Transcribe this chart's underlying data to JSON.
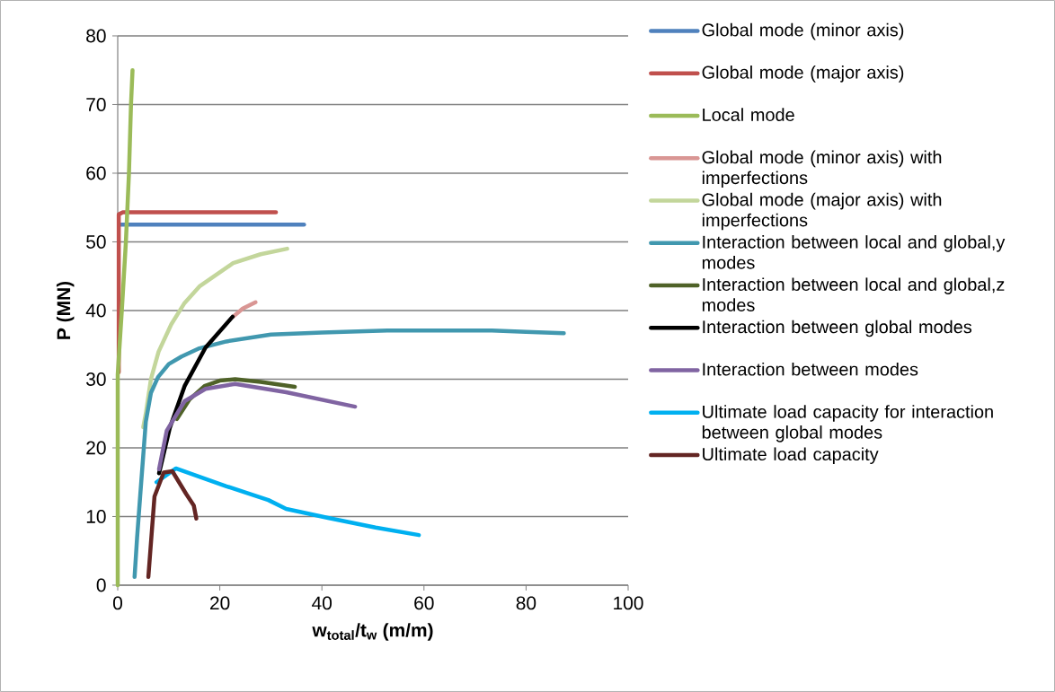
{
  "chart_data": {
    "type": "line",
    "xlabel": "w$_{total}$/t$_{w}$ (m/m)",
    "ylabel": "P (MN)",
    "xlim": [
      0,
      100
    ],
    "ylim": [
      0,
      80
    ],
    "xticks": [
      0,
      20,
      40,
      60,
      80,
      100
    ],
    "yticks": [
      0,
      10,
      20,
      30,
      40,
      50,
      60,
      70,
      80
    ],
    "grid": "y",
    "legend": "right",
    "marker": "none",
    "line_style": "solid",
    "series": [
      {
        "name": "Global mode (minor axis)",
        "color": "#4f81bd",
        "x": [
          0.5,
          36.5
        ],
        "values": [
          52.5,
          52.5
        ]
      },
      {
        "name": "Global mode (major axis)",
        "color": "#c0504d",
        "x": [
          0.2,
          0.2,
          1,
          31
        ],
        "values": [
          31,
          54,
          54.3,
          54.3
        ]
      },
      {
        "name": "Local mode",
        "color": "#9bbb59",
        "x": [
          0,
          0,
          0.8,
          1.6,
          2.2,
          2.6,
          2.9
        ],
        "values": [
          0,
          30.7,
          40,
          50,
          60,
          70,
          75
        ]
      },
      {
        "name": "Global mode (minor axis) with imperfections",
        "color": "#d99694",
        "x": [
          22.6,
          24.5,
          27
        ],
        "values": [
          39.1,
          40.3,
          41.2
        ]
      },
      {
        "name": "Global mode (major axis) with imperfections",
        "color": "#c3d69b",
        "x": [
          5,
          5.5,
          6.5,
          8,
          10.5,
          13,
          16,
          22.6,
          28,
          33.2
        ],
        "values": [
          23,
          25,
          30,
          34,
          38,
          41,
          43.5,
          46.9,
          48.2,
          49
        ]
      },
      {
        "name": "Interaction between local and global,y modes",
        "color": "#4198af",
        "x": [
          3.3,
          3.8,
          4.4,
          5.5,
          6.5,
          7.9,
          10,
          12.5,
          16,
          21.3,
          30,
          40,
          52.8,
          73.3,
          80,
          87.4
        ],
        "values": [
          1.2,
          7,
          13,
          23.8,
          28,
          30.3,
          32.2,
          33.3,
          34.5,
          35.5,
          36.5,
          36.8,
          37.1,
          37.1,
          36.9,
          36.7
        ]
      },
      {
        "name": "Interaction between local and global,z modes",
        "color": "#4f6228",
        "x": [
          11.6,
          14,
          17,
          20,
          23,
          28,
          34.7
        ],
        "values": [
          24.2,
          27,
          29,
          29.8,
          30,
          29.6,
          28.9
        ]
      },
      {
        "name": "Interaction between global modes",
        "color": "#000000",
        "x": [
          8.1,
          10.2,
          13.1,
          17.2,
          22.5
        ],
        "values": [
          16.3,
          22.9,
          29,
          34.6,
          39.1
        ]
      },
      {
        "name": "Interaction between modes",
        "color": "#8064a2",
        "x": [
          8.1,
          9.6,
          13.1,
          17.2,
          23,
          33,
          46.5
        ],
        "values": [
          16.9,
          22.5,
          26.8,
          28.6,
          29.3,
          28.1,
          26
        ]
      },
      {
        "name": "Ultimate load capacity for interaction between global modes",
        "color": "#00b0f0",
        "x": [
          7.6,
          11.4,
          21.3,
          29.5,
          33,
          41.2,
          50.5,
          59
        ],
        "values": [
          15,
          17,
          14.4,
          12.4,
          11.1,
          9.8,
          8.4,
          7.3
        ]
      },
      {
        "name": "Ultimate load capacity",
        "color": "#632523",
        "x": [
          6,
          7.2,
          9,
          10.7,
          13.4,
          14.9,
          15.4
        ],
        "values": [
          1.2,
          12.9,
          16.4,
          16.6,
          13.3,
          11.6,
          9.7
        ]
      }
    ]
  }
}
